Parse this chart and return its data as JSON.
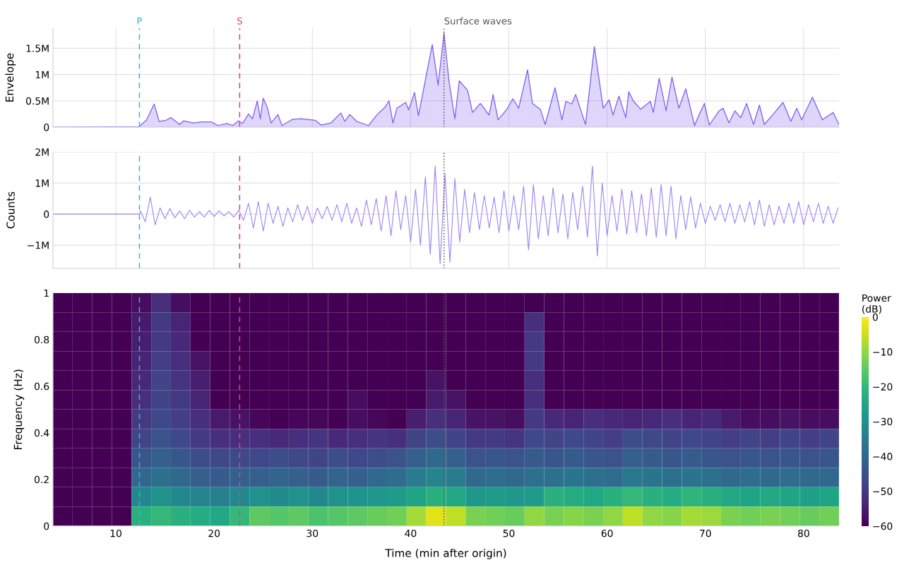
{
  "chart_data": [
    {
      "type": "area",
      "ylabel": "Envelope",
      "xlim": [
        3.6,
        83.6
      ],
      "xticks": [
        10,
        20,
        30,
        40,
        50,
        60,
        70,
        80
      ],
      "ylim": [
        0,
        1880000
      ],
      "yticks": [
        0,
        {
          "value": 500000,
          "label": "0.5M"
        },
        {
          "value": 1000000,
          "label": "1M"
        },
        {
          "value": 1500000,
          "label": "1.5M"
        }
      ],
      "grid": true,
      "tick_labels": "y",
      "series": [
        {
          "color": "#7b5cf0",
          "x": [
            3.6,
            12.35,
            13.1,
            13.9,
            14.4,
            15.1,
            15.6,
            16.5,
            16.9,
            17.9,
            18.7,
            19.7,
            20.4,
            21.3,
            21.9,
            22.5,
            22.9,
            23.5,
            23.9,
            24.4,
            24.7,
            25.0,
            25.4,
            25.8,
            26.5,
            26.9,
            28.0,
            28.9,
            30.3,
            30.9,
            31.9,
            32.9,
            33.3,
            33.8,
            34.5,
            35.7,
            36.6,
            37.4,
            37.8,
            38.2,
            38.6,
            39.5,
            39.8,
            40.4,
            40.8,
            42.2,
            42.8,
            43.4,
            43.9,
            44.5,
            44.95,
            45.8,
            46.3,
            47.1,
            47.98,
            48.4,
            48.9,
            49.8,
            50.4,
            51.0,
            51.9,
            52.4,
            53.2,
            53.7,
            54.7,
            55.4,
            55.8,
            56.4,
            56.8,
            57.8,
            58.7,
            59.6,
            60.2,
            60.6,
            61.2,
            61.9,
            62.2,
            62.7,
            63.4,
            64.4,
            64.7,
            65.3,
            66.0,
            66.6,
            67.3,
            68.0,
            68.9,
            69.3,
            69.9,
            70.4,
            71.4,
            71.8,
            72.4,
            73.0,
            73.6,
            74.2,
            74.9,
            75.5,
            76.0,
            77.2,
            77.9,
            78.7,
            79.3,
            79.8,
            80.9,
            81.9,
            83.0,
            83.6
          ],
          "values": [
            0,
            10000,
            130000,
            440000,
            110000,
            130000,
            180000,
            50000,
            120000,
            80000,
            100000,
            100000,
            30000,
            70000,
            30000,
            120000,
            70000,
            250000,
            160000,
            500000,
            160000,
            550000,
            380000,
            80000,
            240000,
            30000,
            150000,
            160000,
            130000,
            40000,
            80000,
            270000,
            110000,
            240000,
            110000,
            30000,
            240000,
            380000,
            500000,
            80000,
            360000,
            470000,
            330000,
            660000,
            220000,
            1570000,
            800000,
            1790000,
            880000,
            160000,
            880000,
            700000,
            280000,
            450000,
            230000,
            620000,
            140000,
            340000,
            540000,
            360000,
            1090000,
            450000,
            340000,
            50000,
            750000,
            140000,
            490000,
            440000,
            620000,
            50000,
            1530000,
            360000,
            520000,
            230000,
            590000,
            180000,
            670000,
            490000,
            340000,
            490000,
            280000,
            930000,
            310000,
            950000,
            360000,
            730000,
            30000,
            210000,
            450000,
            40000,
            310000,
            360000,
            80000,
            310000,
            180000,
            450000,
            50000,
            420000,
            50000,
            310000,
            470000,
            110000,
            360000,
            140000,
            570000,
            140000,
            280000,
            50000
          ]
        }
      ],
      "ref_lines": [
        {
          "axis": "x",
          "value": 12.4,
          "label": "P",
          "color": "#3fb1ce",
          "line_style": "dashed"
        },
        {
          "axis": "x",
          "value": 22.6,
          "label": "S",
          "color": "#e0407f",
          "line_style": "dashed"
        },
        {
          "axis": "x",
          "value": 43.4,
          "label": "Surface waves",
          "color": "#555555",
          "line_style": "dotted"
        }
      ]
    },
    {
      "type": "line",
      "ylabel": "Counts",
      "xlim": [
        3.6,
        83.6
      ],
      "xticks": [
        10,
        20,
        30,
        40,
        50,
        60,
        70,
        80
      ],
      "ylim": [
        -1750000,
        2000000
      ],
      "yticks": [
        {
          "value": -1000000,
          "label": "−1M"
        },
        0,
        {
          "value": 1000000,
          "label": "1M"
        },
        {
          "value": 2000000,
          "label": "2M"
        }
      ],
      "grid": true,
      "tick_labels": "y",
      "series": [
        {
          "color": "#9b85f5",
          "x": [
            3.6,
            12.4,
            12.5,
            13.0,
            13.5,
            14.0,
            14.5,
            15.0,
            15.5,
            16.0,
            16.5,
            17.0,
            17.5,
            18.0,
            18.5,
            19.0,
            19.5,
            20.0,
            20.5,
            21.0,
            21.5,
            22.0,
            22.5,
            23.0,
            23.5,
            24.0,
            24.5,
            25.0,
            25.5,
            26.0,
            26.5,
            27.0,
            27.5,
            28.0,
            28.5,
            29.0,
            29.5,
            30.0,
            30.5,
            31.0,
            31.5,
            32.0,
            32.5,
            33.0,
            33.5,
            34.0,
            34.5,
            35.0,
            35.5,
            36.0,
            36.5,
            37.0,
            37.5,
            38.0,
            38.5,
            39.0,
            39.5,
            40.0,
            40.5,
            41.0,
            41.5,
            42.0,
            42.5,
            43.0,
            43.5,
            44.0,
            44.5,
            45.0,
            45.5,
            46.0,
            46.5,
            47.0,
            47.5,
            48.0,
            48.5,
            49.0,
            49.5,
            50.0,
            50.5,
            51.0,
            51.5,
            52.0,
            52.5,
            53.0,
            53.5,
            54.0,
            54.5,
            55.0,
            55.5,
            56.0,
            56.5,
            57.0,
            57.5,
            58.0,
            58.5,
            59.0,
            59.5,
            60.0,
            60.5,
            61.0,
            61.5,
            62.0,
            62.5,
            63.0,
            63.5,
            64.0,
            64.5,
            65.0,
            65.5,
            66.0,
            66.5,
            67.0,
            67.5,
            68.0,
            68.5,
            69.0,
            69.5,
            70.0,
            70.5,
            71.0,
            71.5,
            72.0,
            72.5,
            73.0,
            73.5,
            74.0,
            74.5,
            75.0,
            75.5,
            76.0,
            76.5,
            77.0,
            77.5,
            78.0,
            78.5,
            79.0,
            79.5,
            80.0,
            80.5,
            81.0,
            81.5,
            82.0,
            82.5,
            83.0,
            83.5
          ],
          "values": [
            0,
            0,
            100000,
            -250000,
            550000,
            -350000,
            200000,
            -150000,
            180000,
            -120000,
            100000,
            -150000,
            120000,
            -100000,
            80000,
            -100000,
            120000,
            -80000,
            100000,
            -60000,
            80000,
            -100000,
            120000,
            -200000,
            350000,
            -450000,
            400000,
            -550000,
            350000,
            -300000,
            250000,
            -400000,
            200000,
            -250000,
            300000,
            -200000,
            250000,
            -300000,
            200000,
            -150000,
            250000,
            -200000,
            300000,
            -250000,
            350000,
            -300000,
            200000,
            -400000,
            450000,
            -350000,
            500000,
            -550000,
            600000,
            -700000,
            750000,
            -500000,
            600000,
            -900000,
            800000,
            -1000000,
            1200000,
            -1300000,
            1550000,
            -1600000,
            1300000,
            -1550000,
            1150000,
            -900000,
            800000,
            -600000,
            700000,
            -500000,
            600000,
            -450000,
            550000,
            -600000,
            750000,
            -550000,
            600000,
            -500000,
            900000,
            -1150000,
            950000,
            -800000,
            600000,
            -700000,
            850000,
            -600000,
            650000,
            -800000,
            700000,
            -500000,
            900000,
            -750000,
            1550000,
            -1350000,
            1000000,
            -700000,
            600000,
            -550000,
            800000,
            -650000,
            750000,
            -600000,
            650000,
            -700000,
            850000,
            -750000,
            950000,
            -700000,
            900000,
            -800000,
            600000,
            -500000,
            550000,
            -450000,
            350000,
            -300000,
            250000,
            -200000,
            300000,
            -250000,
            350000,
            -300000,
            300000,
            -250000,
            400000,
            -350000,
            450000,
            -400000,
            300000,
            -350000,
            250000,
            -300000,
            350000,
            -300000,
            400000,
            -350000,
            300000,
            -250000,
            350000,
            -300000,
            250000,
            -300000,
            200000
          ]
        }
      ],
      "ref_lines": [
        {
          "axis": "x",
          "value": 12.4,
          "color": "#3fb1ce",
          "line_style": "dashed"
        },
        {
          "axis": "x",
          "value": 22.6,
          "color": "#e0407f",
          "line_style": "dashed"
        },
        {
          "axis": "x",
          "value": 43.4,
          "color": "#555555",
          "line_style": "dotted"
        }
      ]
    },
    {
      "type": "heatmap",
      "xlabel": "Time (min after origin)",
      "ylabel": "Frequency (Hz)",
      "clabel": "Power (dB)",
      "xlim": [
        3.6,
        83.6
      ],
      "xticks": [
        10,
        20,
        30,
        40,
        50,
        60,
        70,
        80
      ],
      "ylim": [
        0,
        1
      ],
      "yticks": [
        0,
        0.2,
        0.4,
        0.6,
        0.8,
        1
      ],
      "clim": [
        -60,
        0
      ],
      "cticks": [
        0,
        -10,
        -20,
        -30,
        -40,
        -50,
        -60
      ],
      "x": [
        4.6,
        6.6,
        8.6,
        10.6,
        12.6,
        14.6,
        16.6,
        18.6,
        20.6,
        22.6,
        24.6,
        26.6,
        28.6,
        30.6,
        32.6,
        34.6,
        36.6,
        38.6,
        40.6,
        42.6,
        44.6,
        46.6,
        48.6,
        50.6,
        52.6,
        54.6,
        56.6,
        58.6,
        60.6,
        62.6,
        64.6,
        66.6,
        68.6,
        70.6,
        72.6,
        74.6,
        76.6,
        78.6,
        80.6,
        82.6
      ],
      "cells": [
        [
          -60,
          -60,
          -60,
          -60,
          -58,
          -52,
          -58,
          -60,
          -60,
          -60,
          -60,
          -60,
          -60,
          -60,
          -60,
          -60,
          -60,
          -60,
          -60,
          -60,
          -60,
          -60,
          -60,
          -60,
          -60,
          -60,
          -60,
          -60,
          -60,
          -60,
          -60,
          -60,
          -60,
          -60,
          -60,
          -60,
          -60,
          -60,
          -60,
          -60
        ],
        [
          -60,
          -60,
          -60,
          -60,
          -56,
          -50,
          -54,
          -60,
          -60,
          -60,
          -60,
          -60,
          -60,
          -60,
          -60,
          -60,
          -60,
          -60,
          -60,
          -60,
          -60,
          -60,
          -60,
          -60,
          -52,
          -60,
          -60,
          -60,
          -60,
          -60,
          -60,
          -60,
          -60,
          -60,
          -60,
          -60,
          -60,
          -60,
          -60,
          -60
        ],
        [
          -60,
          -60,
          -60,
          -60,
          -55,
          -50,
          -53,
          -60,
          -60,
          -60,
          -60,
          -60,
          -60,
          -60,
          -60,
          -60,
          -60,
          -60,
          -60,
          -60,
          -60,
          -60,
          -60,
          -60,
          -50,
          -60,
          -60,
          -60,
          -60,
          -60,
          -60,
          -60,
          -60,
          -60,
          -60,
          -60,
          -60,
          -60,
          -60,
          -60
        ],
        [
          -60,
          -60,
          -60,
          -60,
          -54,
          -49,
          -52,
          -57,
          -60,
          -60,
          -60,
          -60,
          -60,
          -60,
          -60,
          -60,
          -60,
          -60,
          -60,
          -60,
          -60,
          -60,
          -60,
          -60,
          -50,
          -60,
          -60,
          -60,
          -60,
          -60,
          -60,
          -60,
          -60,
          -60,
          -60,
          -60,
          -60,
          -60,
          -60,
          -60
        ],
        [
          -60,
          -60,
          -60,
          -60,
          -53,
          -48,
          -51,
          -55,
          -60,
          -60,
          -60,
          -60,
          -60,
          -60,
          -60,
          -60,
          -60,
          -60,
          -60,
          -57,
          -60,
          -60,
          -60,
          -60,
          -52,
          -60,
          -60,
          -60,
          -60,
          -60,
          -60,
          -60,
          -60,
          -60,
          -60,
          -60,
          -60,
          -60,
          -60,
          -60
        ],
        [
          -60,
          -60,
          -60,
          -60,
          -52,
          -48,
          -50,
          -54,
          -60,
          -60,
          -60,
          -60,
          -60,
          -60,
          -60,
          -58,
          -60,
          -60,
          -60,
          -56,
          -57,
          -60,
          -60,
          -60,
          -52,
          -60,
          -60,
          -60,
          -60,
          -60,
          -60,
          -60,
          -60,
          -60,
          -60,
          -60,
          -60,
          -60,
          -60,
          -60
        ],
        [
          -60,
          -60,
          -60,
          -60,
          -50,
          -47,
          -49,
          -52,
          -56,
          -57,
          -59,
          -60,
          -59,
          -59,
          -60,
          -58,
          -59,
          -60,
          -55,
          -52,
          -54,
          -57,
          -57,
          -58,
          -50,
          -53,
          -54,
          -52,
          -53,
          -54,
          -53,
          -52,
          -54,
          -53,
          -56,
          -58,
          -58,
          -57,
          -58,
          -58
        ],
        [
          -60,
          -60,
          -60,
          -60,
          -48,
          -45,
          -47,
          -50,
          -52,
          -52,
          -52,
          -53,
          -52,
          -51,
          -53,
          -52,
          -51,
          -52,
          -48,
          -46,
          -48,
          -50,
          -50,
          -51,
          -47,
          -48,
          -47,
          -48,
          -49,
          -46,
          -47,
          -48,
          -47,
          -48,
          -49,
          -48,
          -49,
          -48,
          -49,
          -48
        ],
        [
          -60,
          -60,
          -60,
          -60,
          -44,
          -42,
          -44,
          -46,
          -47,
          -47,
          -47,
          -46,
          -47,
          -48,
          -46,
          -47,
          -46,
          -45,
          -42,
          -40,
          -42,
          -45,
          -44,
          -45,
          -43,
          -44,
          -43,
          -44,
          -45,
          -42,
          -43,
          -44,
          -43,
          -44,
          -45,
          -44,
          -45,
          -44,
          -45,
          -44
        ],
        [
          -60,
          -60,
          -60,
          -60,
          -40,
          -38,
          -40,
          -42,
          -43,
          -42,
          -42,
          -41,
          -42,
          -43,
          -41,
          -42,
          -40,
          -39,
          -35,
          -33,
          -35,
          -40,
          -39,
          -40,
          -38,
          -38,
          -37,
          -38,
          -39,
          -36,
          -37,
          -38,
          -37,
          -38,
          -40,
          -39,
          -40,
          -39,
          -40,
          -40
        ],
        [
          -60,
          -60,
          -60,
          -60,
          -32,
          -30,
          -32,
          -33,
          -34,
          -32,
          -30,
          -31,
          -30,
          -32,
          -30,
          -29,
          -28,
          -27,
          -25,
          -22,
          -24,
          -28,
          -27,
          -28,
          -27,
          -22,
          -23,
          -24,
          -22,
          -20,
          -22,
          -23,
          -21,
          -22,
          -24,
          -25,
          -24,
          -25,
          -26,
          -25
        ],
        [
          -60,
          -60,
          -60,
          -60,
          -22,
          -20,
          -22,
          -23,
          -24,
          -20,
          -15,
          -16,
          -15,
          -17,
          -16,
          -15,
          -14,
          -13,
          -8,
          -3,
          -6,
          -12,
          -13,
          -14,
          -10,
          -12,
          -11,
          -12,
          -10,
          -6,
          -10,
          -11,
          -8,
          -9,
          -12,
          -13,
          -12,
          -13,
          -14,
          -13
        ]
      ],
      "ref_lines": [
        {
          "axis": "x",
          "value": 12.4,
          "color": "#3fb1ce",
          "line_style": "dashed"
        },
        {
          "axis": "x",
          "value": 22.6,
          "color": "#e0407f",
          "line_style": "dashed"
        },
        {
          "axis": "x",
          "value": 43.4,
          "color": "#555555",
          "line_style": "dotted"
        }
      ]
    }
  ]
}
